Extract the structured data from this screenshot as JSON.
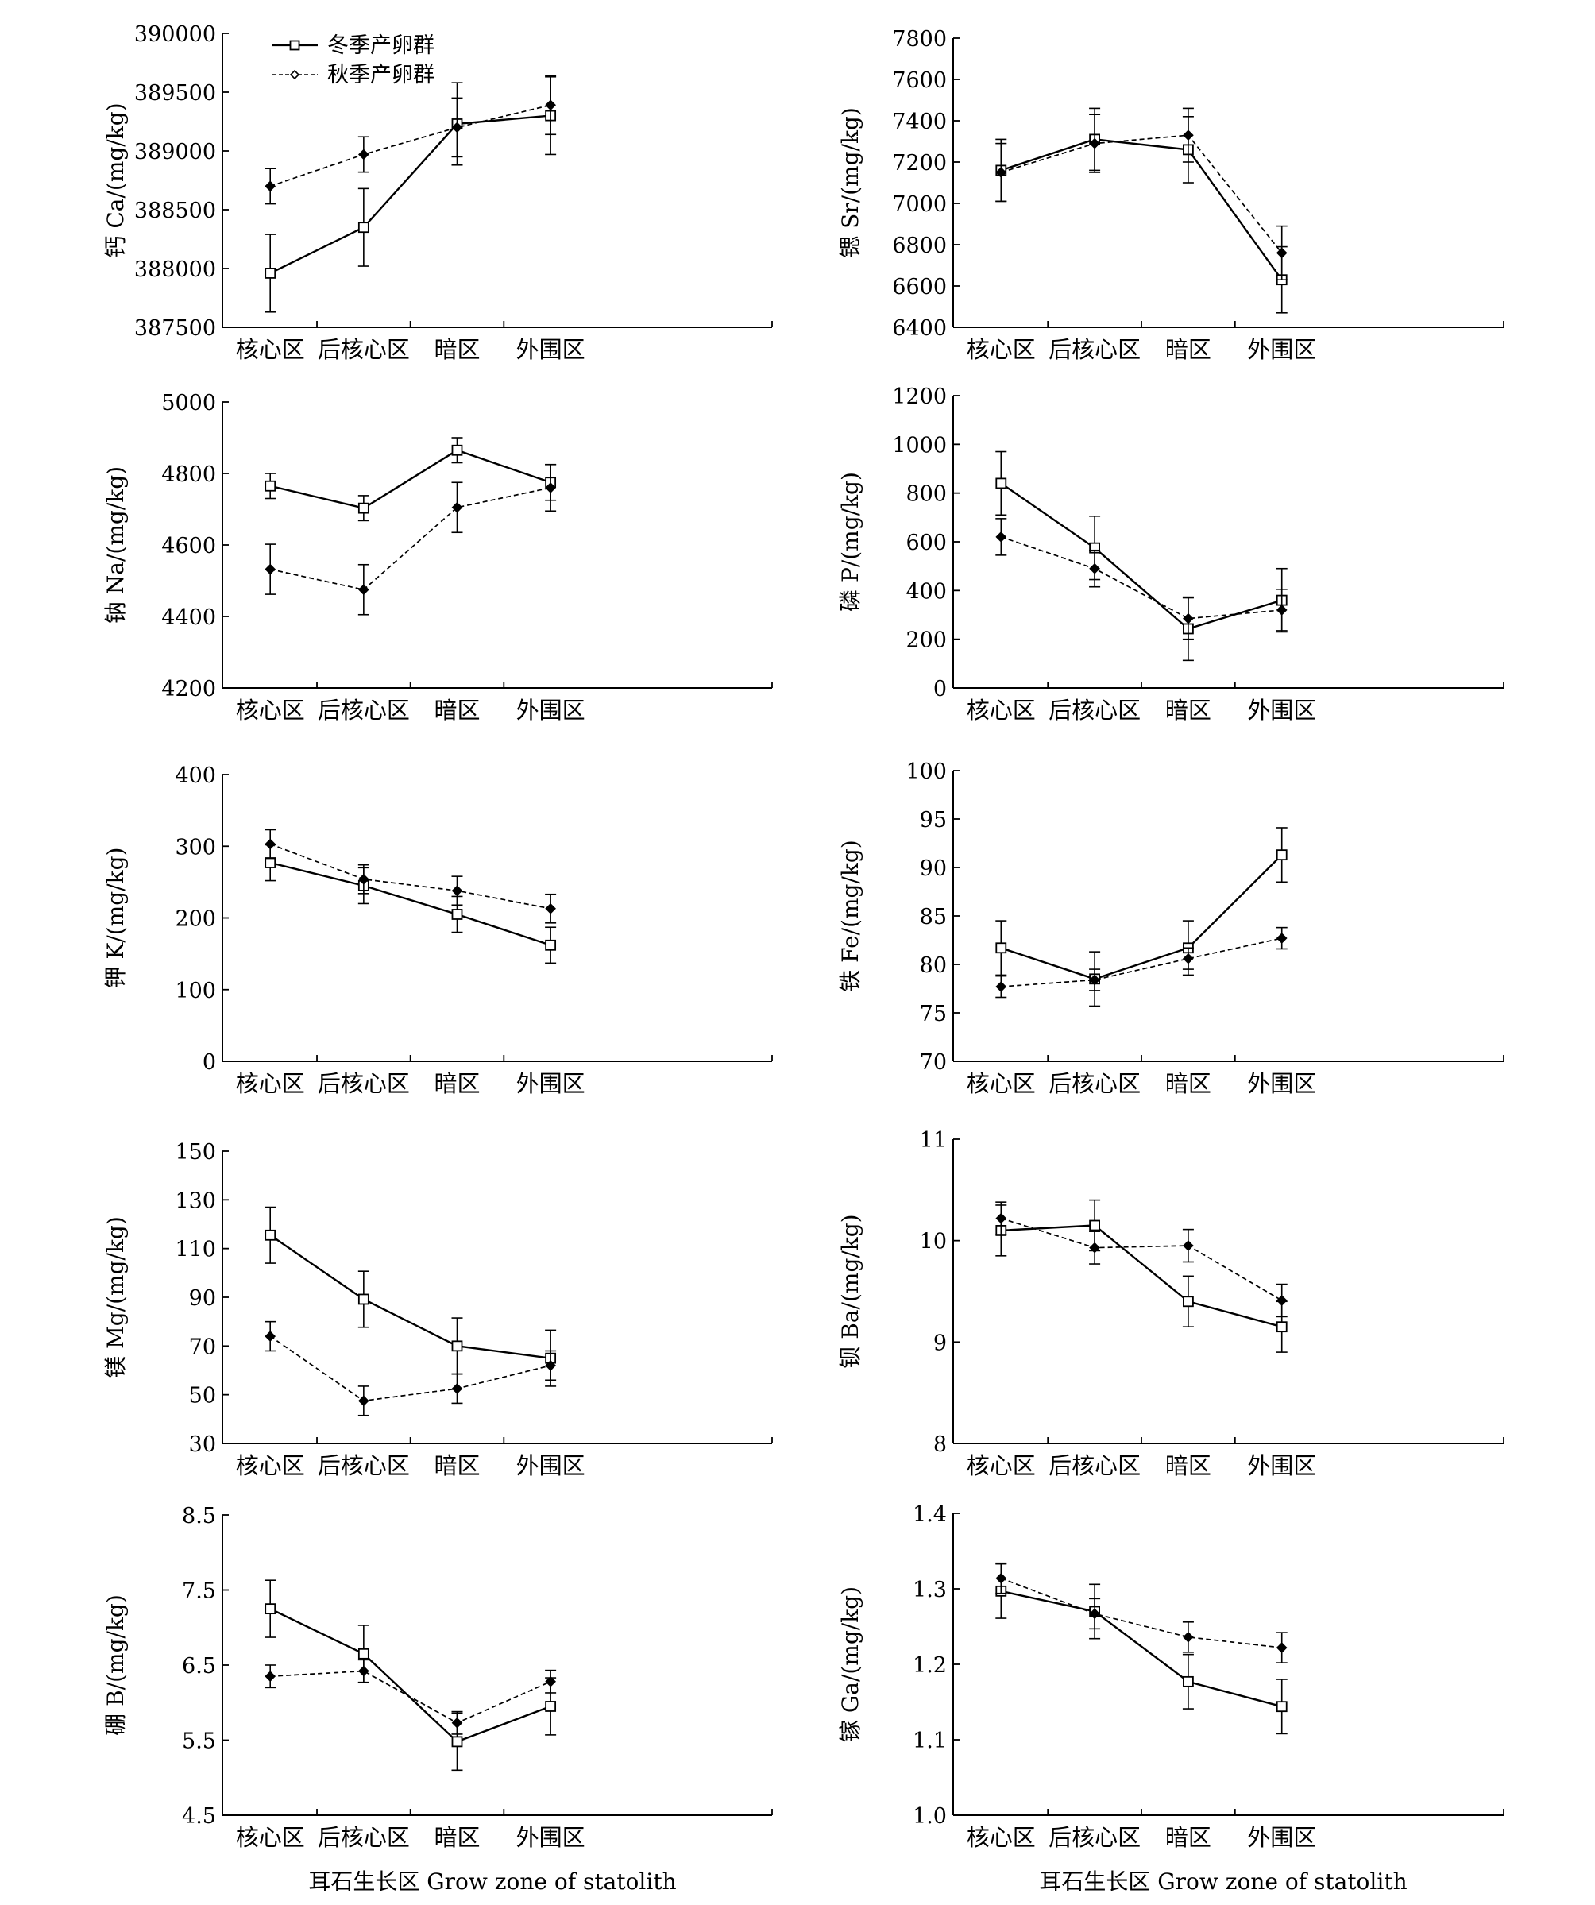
{
  "xlabel_text": "耳石生长区 Grow zone of statolith",
  "legend": {
    "winter": "冬季产卵群",
    "autumn": "秋季产卵群"
  },
  "chart_data": [
    {
      "type": "line",
      "ylabel": "钙 Ca/(mg/kg)",
      "categories": [
        "核心区",
        "后核心区",
        "暗区",
        "外围区"
      ],
      "ylim": [
        387500,
        390000
      ],
      "yticks": [
        387500,
        388000,
        388500,
        389000,
        389500,
        390000
      ],
      "legend": "top-left",
      "series": [
        {
          "name": "冬季产卵群",
          "values": [
            387960,
            388350,
            389230,
            389300
          ],
          "err": [
            330,
            330,
            350,
            330
          ]
        },
        {
          "name": "秋季产卵群",
          "values": [
            388700,
            388970,
            389200,
            389390
          ],
          "err": [
            150,
            150,
            250,
            250
          ]
        }
      ]
    },
    {
      "type": "line",
      "ylabel": "锶 Sr/(mg/kg)",
      "categories": [
        "核心区",
        "后核心区",
        "暗区",
        "外围区"
      ],
      "ylim": [
        6400,
        7800
      ],
      "yticks": [
        6400,
        6600,
        6800,
        7000,
        7200,
        7400,
        7600,
        7800
      ],
      "series": [
        {
          "name": "冬季产卵群",
          "values": [
            7160,
            7310,
            7260,
            6630
          ],
          "err": [
            150,
            150,
            160,
            160
          ]
        },
        {
          "name": "秋季产卵群",
          "values": [
            7150,
            7290,
            7330,
            6760
          ],
          "err": [
            140,
            140,
            130,
            130
          ]
        }
      ]
    },
    {
      "type": "line",
      "ylabel": "钠 Na/(mg/kg)",
      "categories": [
        "核心区",
        "后核心区",
        "暗区",
        "外围区"
      ],
      "ylim": [
        4200,
        5000
      ],
      "yticks": [
        4200,
        4400,
        4600,
        4800,
        5000
      ],
      "series": [
        {
          "name": "冬季产卵群",
          "values": [
            4765,
            4703,
            4865,
            4775
          ],
          "err": [
            35,
            35,
            35,
            50
          ]
        },
        {
          "name": "秋季产卵群",
          "values": [
            4532,
            4475,
            4705,
            4760
          ],
          "err": [
            70,
            70,
            70,
            65
          ]
        }
      ]
    },
    {
      "type": "line",
      "ylabel": "磷 P/(mg/kg)",
      "categories": [
        "核心区",
        "后核心区",
        "暗区",
        "外围区"
      ],
      "ylim": [
        0,
        1200
      ],
      "yticks": [
        0,
        200,
        400,
        600,
        800,
        1000,
        1200
      ],
      "series": [
        {
          "name": "冬季产卵群",
          "values": [
            840,
            575,
            243,
            360
          ],
          "err": [
            130,
            130,
            130,
            130
          ]
        },
        {
          "name": "秋季产卵群",
          "values": [
            620,
            490,
            285,
            320
          ],
          "err": [
            75,
            75,
            85,
            85
          ]
        }
      ]
    },
    {
      "type": "line",
      "ylabel": "钾 K/(mg/kg)",
      "categories": [
        "核心区",
        "后核心区",
        "暗区",
        "外围区"
      ],
      "ylim": [
        0,
        400
      ],
      "yticks": [
        0,
        100,
        200,
        300,
        400
      ],
      "series": [
        {
          "name": "冬季产卵群",
          "values": [
            277,
            245,
            205,
            162
          ],
          "err": [
            25,
            25,
            25,
            25
          ]
        },
        {
          "name": "秋季产卵群",
          "values": [
            303,
            254,
            238,
            213
          ],
          "err": [
            20,
            20,
            20,
            20
          ]
        }
      ]
    },
    {
      "type": "line",
      "ylabel": "铁 Fe/(mg/kg)",
      "categories": [
        "核心区",
        "后核心区",
        "暗区",
        "外围区"
      ],
      "ylim": [
        70,
        100
      ],
      "yticks": [
        70,
        75,
        80,
        85,
        90,
        95,
        100
      ],
      "series": [
        {
          "name": "冬季产卵群",
          "values": [
            81.7,
            78.5,
            81.7,
            91.3
          ],
          "err": [
            2.8,
            2.8,
            2.8,
            2.8
          ]
        },
        {
          "name": "秋季产卵群",
          "values": [
            77.7,
            78.4,
            80.6,
            82.7
          ],
          "err": [
            1.1,
            1.1,
            1.1,
            1.1
          ]
        }
      ]
    },
    {
      "type": "line",
      "ylabel": "镁 Mg/(mg/kg)",
      "categories": [
        "核心区",
        "后核心区",
        "暗区",
        "外围区"
      ],
      "ylim": [
        30,
        150
      ],
      "yticks": [
        30,
        50,
        70,
        90,
        110,
        130,
        150
      ],
      "series": [
        {
          "name": "冬季产卵群",
          "values": [
            115.5,
            89.2,
            70,
            65
          ],
          "err": [
            11.5,
            11.5,
            11.5,
            11.5
          ]
        },
        {
          "name": "秋季产卵群",
          "values": [
            74,
            47.5,
            52.5,
            62
          ],
          "err": [
            6,
            6,
            6,
            6
          ]
        }
      ]
    },
    {
      "type": "line",
      "ylabel": "钡 Ba/(mg/kg)",
      "categories": [
        "核心区",
        "后核心区",
        "暗区",
        "外围区"
      ],
      "ylim": [
        8,
        11
      ],
      "yticks": [
        8,
        9,
        10,
        11
      ],
      "series": [
        {
          "name": "冬季产卵群",
          "values": [
            10.1,
            10.15,
            9.4,
            9.15
          ],
          "err": [
            0.25,
            0.25,
            0.25,
            0.25
          ]
        },
        {
          "name": "秋季产卵群",
          "values": [
            10.22,
            9.93,
            9.95,
            9.41
          ],
          "err": [
            0.16,
            0.16,
            0.16,
            0.16
          ]
        }
      ]
    },
    {
      "type": "line",
      "ylabel": "硼 B/(mg/kg)",
      "categories": [
        "核心区",
        "后核心区",
        "暗区",
        "外围区"
      ],
      "ylim": [
        4.5,
        8.5
      ],
      "yticks": [
        4.5,
        5.5,
        6.5,
        7.5,
        8.5
      ],
      "series": [
        {
          "name": "冬季产卵群",
          "values": [
            7.25,
            6.65,
            5.48,
            5.95
          ],
          "err": [
            0.38,
            0.38,
            0.38,
            0.38
          ]
        },
        {
          "name": "秋季产卵群",
          "values": [
            6.35,
            6.42,
            5.73,
            6.28
          ],
          "err": [
            0.15,
            0.15,
            0.15,
            0.15
          ]
        }
      ]
    },
    {
      "type": "line",
      "ylabel": "镓 Ga/(mg/kg)",
      "categories": [
        "核心区",
        "后核心区",
        "暗区",
        "外围区"
      ],
      "ylim": [
        1.0,
        1.4
      ],
      "yticks": [
        1.0,
        1.1,
        1.2,
        1.3,
        1.4
      ],
      "ytick_labels": [
        "1.0",
        "1.1",
        "1.2",
        "1.3",
        "1.4"
      ],
      "series": [
        {
          "name": "冬季产卵群",
          "values": [
            1.297,
            1.27,
            1.177,
            1.144
          ],
          "err": [
            0.036,
            0.036,
            0.036,
            0.036
          ]
        },
        {
          "name": "秋季产卵群",
          "values": [
            1.314,
            1.267,
            1.236,
            1.222
          ],
          "err": [
            0.02,
            0.02,
            0.02,
            0.02
          ]
        }
      ]
    }
  ]
}
